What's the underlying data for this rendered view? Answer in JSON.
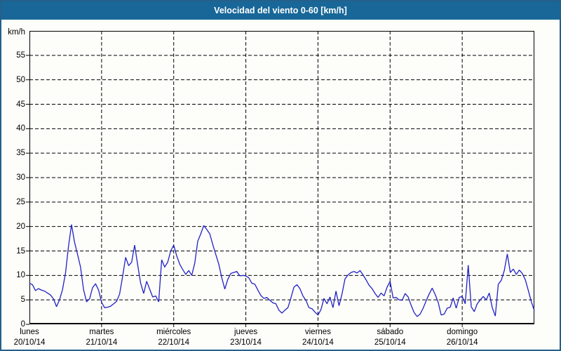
{
  "window": {
    "title": "Velocidad del viento 0-60 [km/h]"
  },
  "colors": {
    "header_bg": "#186798",
    "frame_border": "#24608c",
    "page_bg": "#fdfdfa",
    "line": "#2121c8",
    "grid": "#000000",
    "text": "#000000",
    "title_text": "#ffffff"
  },
  "y_axis": {
    "unit_label": "km/h",
    "min": 0,
    "max": 60,
    "ticks": [
      0,
      5,
      10,
      15,
      20,
      25,
      30,
      35,
      40,
      45,
      50,
      55
    ]
  },
  "x_axis": {
    "days": [
      {
        "name": "lunes",
        "date": "20/10/14"
      },
      {
        "name": "martes",
        "date": "21/10/14"
      },
      {
        "name": "miércoles",
        "date": "22/10/14"
      },
      {
        "name": "jueves",
        "date": "23/10/14"
      },
      {
        "name": "viernes",
        "date": "24/10/14"
      },
      {
        "name": "sábado",
        "date": "25/10/14"
      },
      {
        "name": "domingo",
        "date": "26/10/14"
      }
    ]
  },
  "chart_data": {
    "type": "line",
    "title": "Velocidad del viento 0-60 [km/h]",
    "xlabel": "",
    "ylabel": "km/h",
    "ylim": [
      0,
      60
    ],
    "ytick_step": 5,
    "grid": "dashed",
    "legend": "none",
    "days": [
      "lunes 20/10/14",
      "martes 21/10/14",
      "miércoles 22/10/14",
      "jueves 23/10/14",
      "viernes 24/10/14",
      "sábado 25/10/14",
      "domingo 26/10/14"
    ],
    "samples_per_day": 24,
    "interval_hours": 1,
    "series": [
      {
        "name": "Velocidad del viento [km/h]",
        "color": "#2121c8",
        "values": [
          8.4,
          8.1,
          6.9,
          7.3,
          7.0,
          6.8,
          6.4,
          6.0,
          5.2,
          3.6,
          5.0,
          7.1,
          10.5,
          16.0,
          20.4,
          16.8,
          14.3,
          11.7,
          7.1,
          4.6,
          5.2,
          7.5,
          8.3,
          7.0,
          4.5,
          3.4,
          3.5,
          3.7,
          4.2,
          4.7,
          6.2,
          9.8,
          13.7,
          12.0,
          12.7,
          16.2,
          12.2,
          8.4,
          6.3,
          8.8,
          7.2,
          5.6,
          5.8,
          4.6,
          13.2,
          11.7,
          12.7,
          15.0,
          16.2,
          14.0,
          12.3,
          11.2,
          10.2,
          11.0,
          10.0,
          12.5,
          17.0,
          18.5,
          20.2,
          19.4,
          18.5,
          16.3,
          14.3,
          12.3,
          9.5,
          7.2,
          9.2,
          10.4,
          10.6,
          10.8,
          9.9,
          10.0,
          9.9,
          9.5,
          8.4,
          8.2,
          7.0,
          5.9,
          5.3,
          5.5,
          4.9,
          4.4,
          4.2,
          2.9,
          2.3,
          2.9,
          3.4,
          5.4,
          7.6,
          8.1,
          7.3,
          5.8,
          4.9,
          3.4,
          3.2,
          2.5,
          1.9,
          3.0,
          5.3,
          4.2,
          5.6,
          3.4,
          6.8,
          3.8,
          6.2,
          9.3,
          10.1,
          10.6,
          10.8,
          10.5,
          11.0,
          10.1,
          9.1,
          8.0,
          7.3,
          6.3,
          5.5,
          6.4,
          5.8,
          7.6,
          8.8,
          5.4,
          5.5,
          5.0,
          4.9,
          6.3,
          5.6,
          3.9,
          2.4,
          1.6,
          2.1,
          3.3,
          4.8,
          6.2,
          7.4,
          6.1,
          4.5,
          1.9,
          2.1,
          3.3,
          3.5,
          5.4,
          3.3,
          5.5,
          5.7,
          4.2,
          12.1,
          3.6,
          2.6,
          4.2,
          5.0,
          5.7,
          5.0,
          6.4,
          3.4,
          1.7,
          8.2,
          9.0,
          11.0,
          14.4,
          10.6,
          11.3,
          10.2,
          11.1,
          10.4,
          9.1,
          6.9,
          4.6,
          2.8
        ]
      }
    ]
  }
}
